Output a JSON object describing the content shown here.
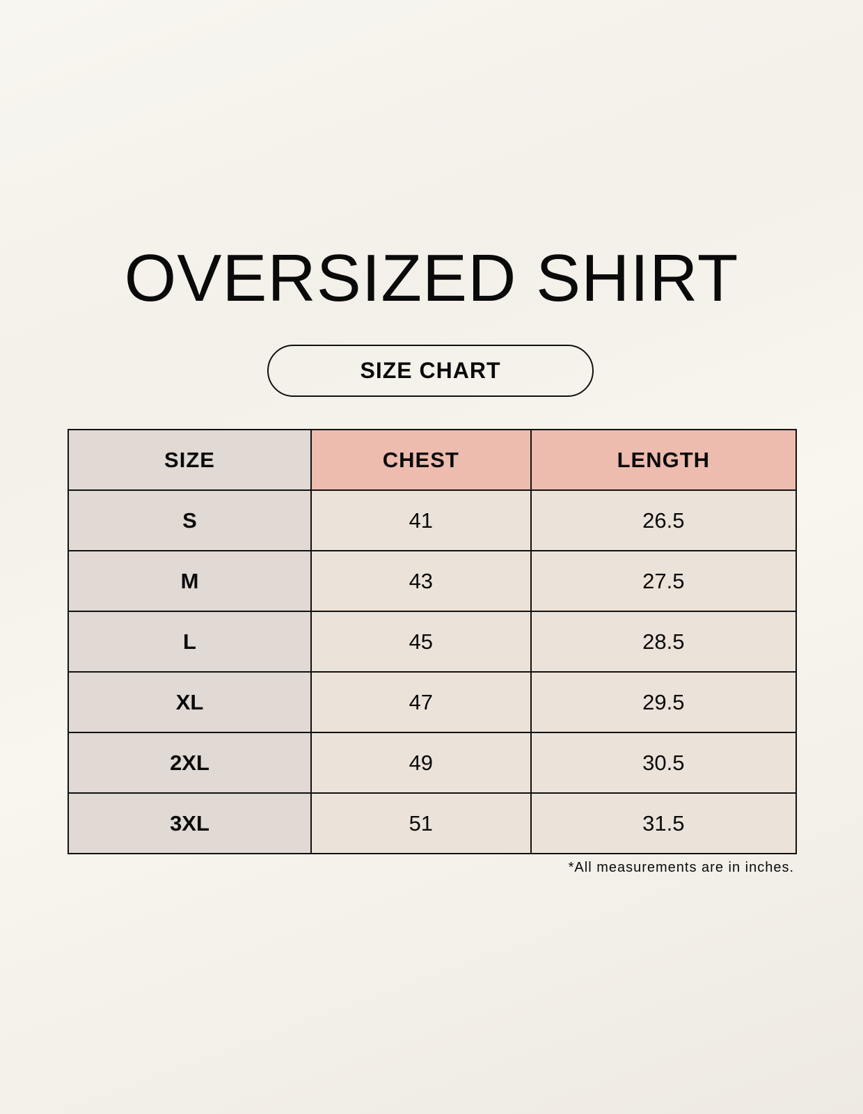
{
  "title": "OVERSIZED SHIRT",
  "subtitle": "SIZE CHART",
  "table": {
    "headers": [
      "SIZE",
      "CHEST",
      "LENGTH"
    ],
    "rows": [
      [
        "S",
        "41",
        "26.5"
      ],
      [
        "M",
        "43",
        "27.5"
      ],
      [
        "L",
        "45",
        "28.5"
      ],
      [
        "XL",
        "47",
        "29.5"
      ],
      [
        "2XL",
        "49",
        "30.5"
      ],
      [
        "3XL",
        "51",
        "31.5"
      ]
    ]
  },
  "footnote": "*All measurements are in inches.",
  "colors": {
    "size_column": "#e0d9d4",
    "header_accent": "#edbcaf",
    "cell": "#ebe3d9"
  }
}
